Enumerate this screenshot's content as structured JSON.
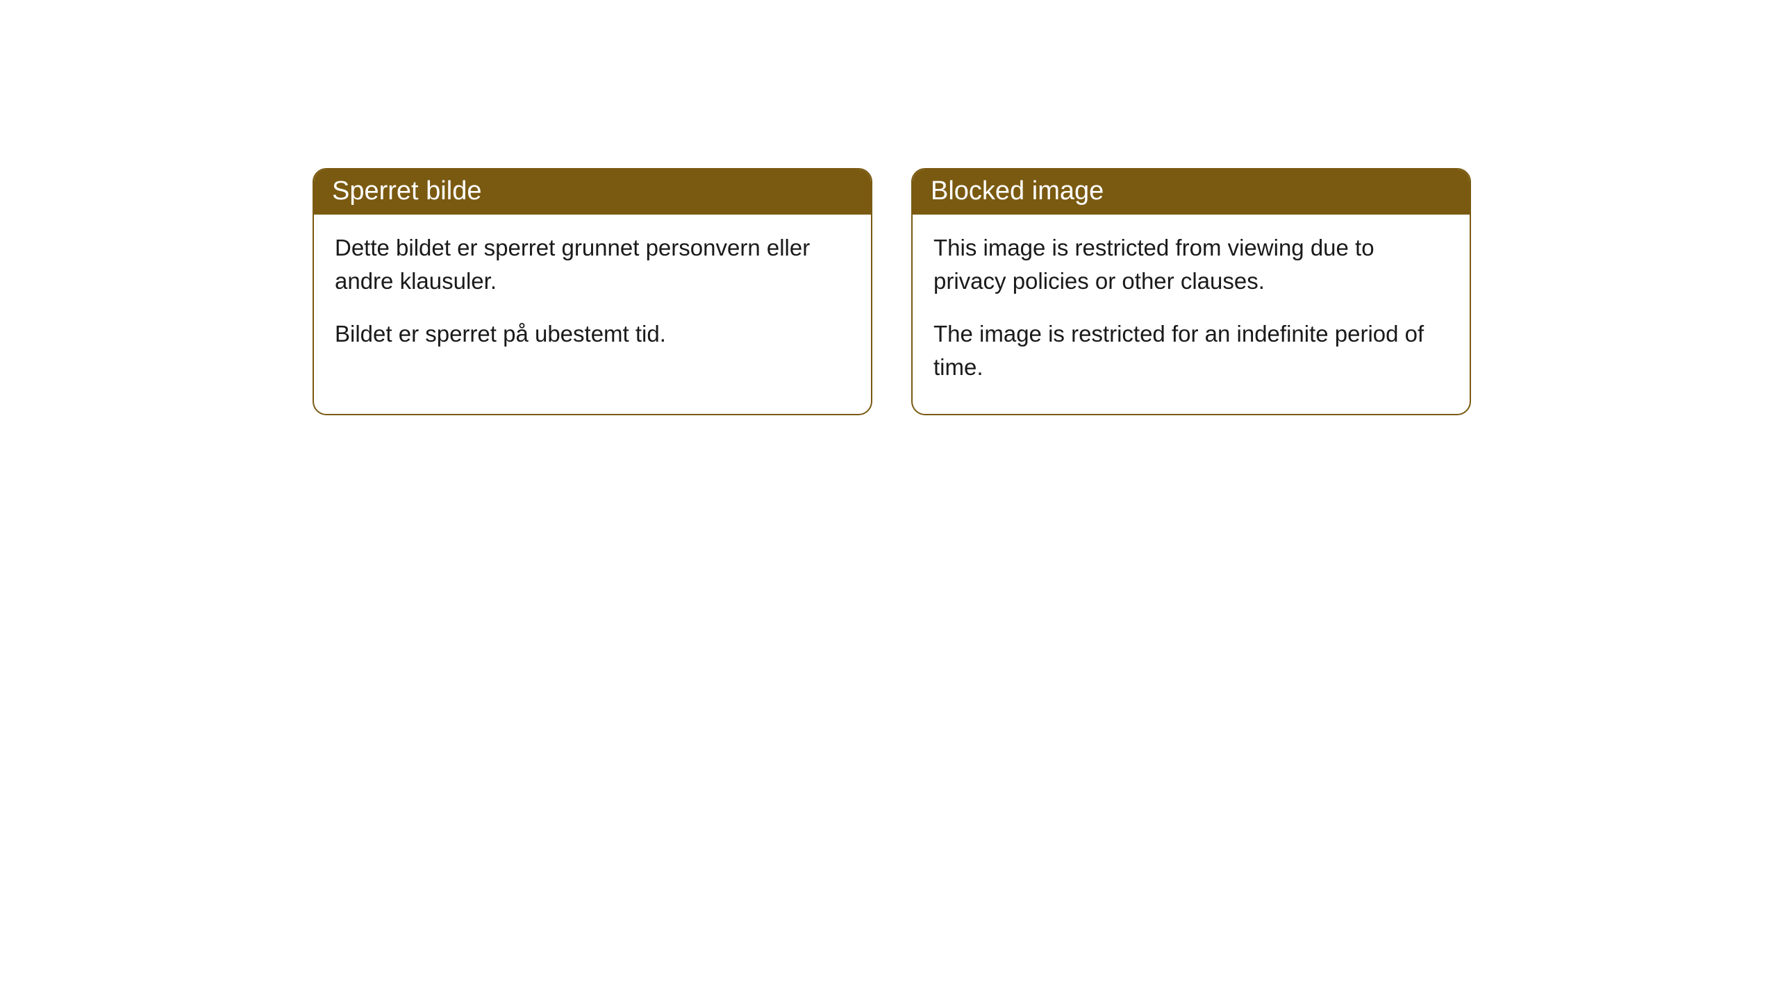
{
  "cards": [
    {
      "title": "Sperret bilde",
      "p1": "Dette bildet er sperret grunnet personvern eller andre klausuler.",
      "p2": "Bildet er sperret på ubestemt tid."
    },
    {
      "title": "Blocked image",
      "p1": "This image is restricted from viewing due to privacy policies or other clauses.",
      "p2": "The image is restricted for an indefinite period of time."
    }
  ],
  "style": {
    "header_bg": "#7a5a11",
    "header_text_color": "#ffffff",
    "border_color": "#7a5a11",
    "border_radius": 20,
    "body_bg": "#ffffff",
    "body_text_color": "#1a1a1a",
    "title_fontsize": 38,
    "body_fontsize": 33
  }
}
